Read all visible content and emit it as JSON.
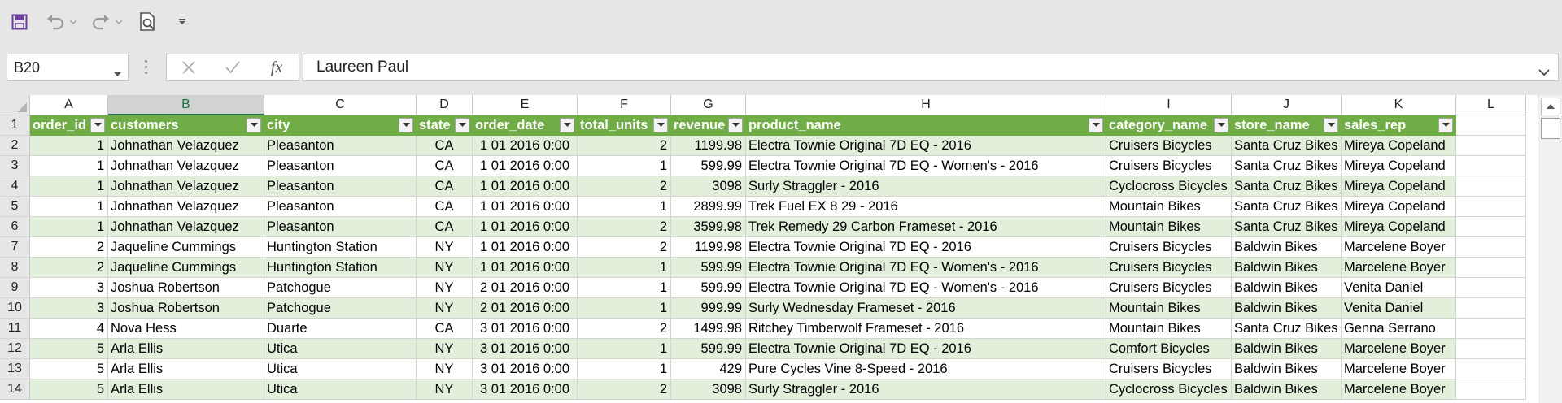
{
  "toolbar": {
    "icons": [
      "save-icon",
      "undo-icon",
      "redo-icon",
      "print-preview-icon",
      "customize-quick-access-icon"
    ]
  },
  "formula_bar": {
    "name_box": "B20",
    "formula_value": "Laureen Paul",
    "fx_label": "fx"
  },
  "columns": [
    "A",
    "B",
    "C",
    "D",
    "E",
    "F",
    "G",
    "H",
    "I",
    "J",
    "K",
    "L"
  ],
  "selected_column": "B",
  "table_headers": [
    "order_id",
    "customers",
    "city",
    "state",
    "order_date",
    "total_units",
    "revenue",
    "product_name",
    "category_name",
    "store_name",
    "sales_rep"
  ],
  "row_numbers": [
    "1",
    "2",
    "3",
    "4",
    "5",
    "6",
    "7",
    "8",
    "9",
    "10",
    "11",
    "12",
    "13",
    "14"
  ],
  "rows": [
    [
      "1",
      "Johnathan Velazquez",
      "Pleasanton",
      "CA",
      "1 01 2016 0:00",
      "2",
      "1199.98",
      "Electra Townie Original 7D EQ - 2016",
      "Cruisers Bicycles",
      "Santa Cruz Bikes",
      "Mireya Copeland"
    ],
    [
      "1",
      "Johnathan Velazquez",
      "Pleasanton",
      "CA",
      "1 01 2016 0:00",
      "1",
      "599.99",
      "Electra Townie Original 7D EQ - Women's - 2016",
      "Cruisers Bicycles",
      "Santa Cruz Bikes",
      "Mireya Copeland"
    ],
    [
      "1",
      "Johnathan Velazquez",
      "Pleasanton",
      "CA",
      "1 01 2016 0:00",
      "2",
      "3098",
      "Surly Straggler - 2016",
      "Cyclocross Bicycles",
      "Santa Cruz Bikes",
      "Mireya Copeland"
    ],
    [
      "1",
      "Johnathan Velazquez",
      "Pleasanton",
      "CA",
      "1 01 2016 0:00",
      "1",
      "2899.99",
      "Trek Fuel EX 8 29 - 2016",
      "Mountain Bikes",
      "Santa Cruz Bikes",
      "Mireya Copeland"
    ],
    [
      "1",
      "Johnathan Velazquez",
      "Pleasanton",
      "CA",
      "1 01 2016 0:00",
      "2",
      "3599.98",
      "Trek Remedy 29 Carbon Frameset - 2016",
      "Mountain Bikes",
      "Santa Cruz Bikes",
      "Mireya Copeland"
    ],
    [
      "2",
      "Jaqueline Cummings",
      "Huntington Station",
      "NY",
      "1 01 2016 0:00",
      "2",
      "1199.98",
      "Electra Townie Original 7D EQ - 2016",
      "Cruisers Bicycles",
      "Baldwin Bikes",
      "Marcelene Boyer"
    ],
    [
      "2",
      "Jaqueline Cummings",
      "Huntington Station",
      "NY",
      "1 01 2016 0:00",
      "1",
      "599.99",
      "Electra Townie Original 7D EQ - Women's - 2016",
      "Cruisers Bicycles",
      "Baldwin Bikes",
      "Marcelene Boyer"
    ],
    [
      "3",
      "Joshua Robertson",
      "Patchogue",
      "NY",
      "2 01 2016 0:00",
      "1",
      "599.99",
      "Electra Townie Original 7D EQ - Women's - 2016",
      "Cruisers Bicycles",
      "Baldwin Bikes",
      "Venita Daniel"
    ],
    [
      "3",
      "Joshua Robertson",
      "Patchogue",
      "NY",
      "2 01 2016 0:00",
      "1",
      "999.99",
      "Surly Wednesday Frameset - 2016",
      "Mountain Bikes",
      "Baldwin Bikes",
      "Venita Daniel"
    ],
    [
      "4",
      "Nova Hess",
      "Duarte",
      "CA",
      "3 01 2016 0:00",
      "2",
      "1499.98",
      "Ritchey Timberwolf Frameset - 2016",
      "Mountain Bikes",
      "Santa Cruz Bikes",
      "Genna Serrano"
    ],
    [
      "5",
      "Arla Ellis",
      "Utica",
      "NY",
      "3 01 2016 0:00",
      "1",
      "599.99",
      "Electra Townie Original 7D EQ - 2016",
      "Comfort Bicycles",
      "Baldwin Bikes",
      "Marcelene Boyer"
    ],
    [
      "5",
      "Arla Ellis",
      "Utica",
      "NY",
      "3 01 2016 0:00",
      "1",
      "429",
      "Pure Cycles Vine 8-Speed - 2016",
      "Cruisers Bicycles",
      "Baldwin Bikes",
      "Marcelene Boyer"
    ],
    [
      "5",
      "Arla Ellis",
      "Utica",
      "NY",
      "3 01 2016 0:00",
      "2",
      "3098",
      "Surly Straggler - 2016",
      "Cyclocross Bicycles",
      "Baldwin Bikes",
      "Marcelene Boyer"
    ]
  ],
  "colors": {
    "table_header": "#70ad47",
    "table_band": "#e2efda",
    "accent": "#217346"
  }
}
